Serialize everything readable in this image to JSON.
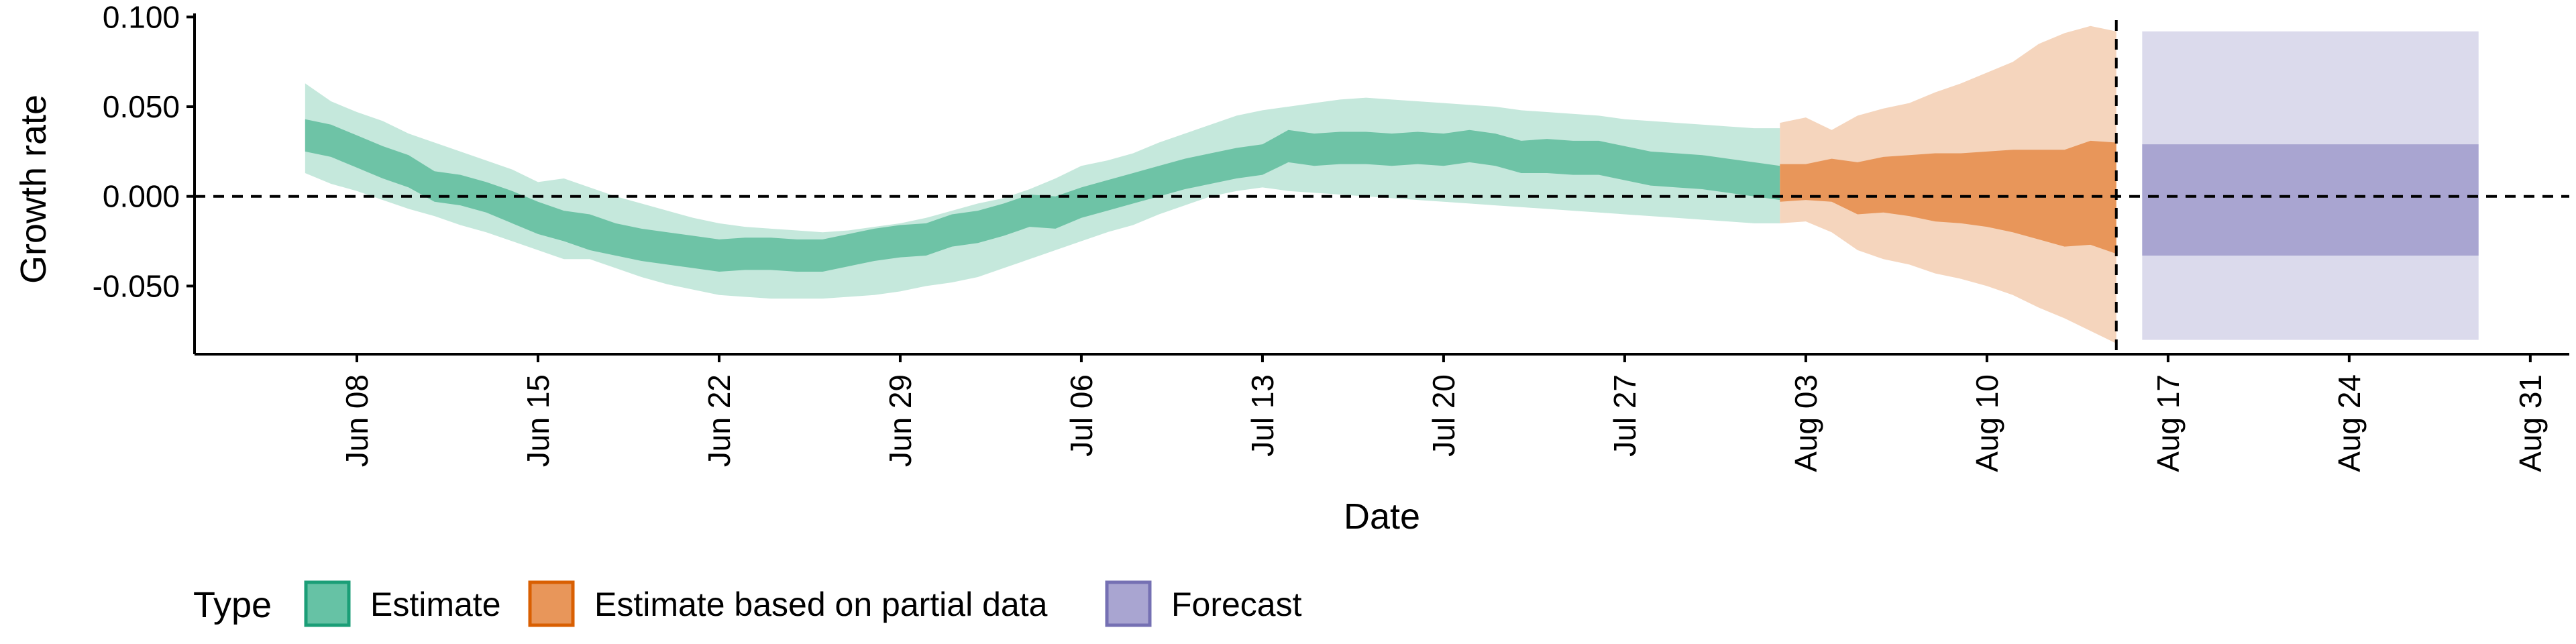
{
  "chart_data": {
    "type": "area",
    "xlabel": "Date",
    "ylabel": "Growth rate",
    "x_ticks": [
      "Jun 08",
      "Jun 15",
      "Jun 22",
      "Jun 29",
      "Jul 06",
      "Jul 13",
      "Jul 20",
      "Jul 27",
      "Aug 03",
      "Aug 10",
      "Aug 17",
      "Aug 24",
      "Aug 31"
    ],
    "y_ticks": [
      "0.100",
      "0.050",
      "0.000",
      "-0.050"
    ],
    "y_tick_values": [
      0.1,
      0.05,
      0.0,
      -0.05
    ],
    "xlim_days": [
      0,
      88
    ],
    "ylim": [
      -0.088,
      0.102
    ],
    "reference_lines": {
      "y": 0.0,
      "x_date": "Aug 15"
    },
    "legend": {
      "title": "Type",
      "position": "bottom-left",
      "entries": [
        {
          "label": "Estimate",
          "color": "#66c2a5",
          "edge": "#1b9e77"
        },
        {
          "label": "Estimate based on partial data",
          "color": "#e8965a",
          "edge": "#d95f02"
        },
        {
          "label": "Forecast",
          "color": "#a9a5d1",
          "edge": "#7570b3"
        }
      ]
    },
    "colors": {
      "estimate_outer": "#c5e8dc",
      "estimate_inner": "#6ec3a6",
      "partial_outer": "#f5d5bd",
      "partial_inner": "#e8965a",
      "forecast_outer": "#dbdaec",
      "forecast_inner": "#a9a5d1"
    },
    "series": [
      {
        "type": "Estimate",
        "x_dates": [
          "Jun 06",
          "Jun 07",
          "Jun 08",
          "Jun 09",
          "Jun 10",
          "Jun 11",
          "Jun 12",
          "Jun 13",
          "Jun 14",
          "Jun 15",
          "Jun 16",
          "Jun 17",
          "Jun 18",
          "Jun 19",
          "Jun 20",
          "Jun 21",
          "Jun 22",
          "Jun 23",
          "Jun 24",
          "Jun 25",
          "Jun 26",
          "Jun 27",
          "Jun 28",
          "Jun 29",
          "Jun 30",
          "Jul 01",
          "Jul 02",
          "Jul 03",
          "Jul 04",
          "Jul 05",
          "Jul 06",
          "Jul 07",
          "Jul 08",
          "Jul 09",
          "Jul 10",
          "Jul 11",
          "Jul 12",
          "Jul 13",
          "Jul 14",
          "Jul 15",
          "Jul 16",
          "Jul 17",
          "Jul 18",
          "Jul 19",
          "Jul 20",
          "Jul 21",
          "Jul 22",
          "Jul 23",
          "Jul 24",
          "Jul 25",
          "Jul 26",
          "Jul 27",
          "Jul 28",
          "Jul 29",
          "Jul 30",
          "Jul 31",
          "Aug 01",
          "Aug 02"
        ],
        "outer_upper": [
          0.063,
          0.053,
          0.047,
          0.042,
          0.035,
          0.03,
          0.025,
          0.02,
          0.015,
          0.008,
          0.01,
          0.005,
          0.0,
          -0.004,
          -0.008,
          -0.012,
          -0.015,
          -0.017,
          -0.018,
          -0.019,
          -0.02,
          -0.019,
          -0.017,
          -0.015,
          -0.012,
          -0.008,
          -0.004,
          -0.001,
          0.004,
          0.01,
          0.017,
          0.02,
          0.024,
          0.03,
          0.035,
          0.04,
          0.045,
          0.048,
          0.05,
          0.052,
          0.054,
          0.055,
          0.054,
          0.053,
          0.052,
          0.051,
          0.05,
          0.048,
          0.047,
          0.046,
          0.045,
          0.043,
          0.042,
          0.041,
          0.04,
          0.039,
          0.038,
          0.038
        ],
        "inner_upper": [
          0.043,
          0.04,
          0.034,
          0.028,
          0.023,
          0.014,
          0.012,
          0.008,
          0.003,
          -0.003,
          -0.008,
          -0.01,
          -0.015,
          -0.018,
          -0.02,
          -0.022,
          -0.024,
          -0.023,
          -0.023,
          -0.024,
          -0.024,
          -0.021,
          -0.018,
          -0.016,
          -0.015,
          -0.01,
          -0.008,
          -0.004,
          0.001,
          0.0,
          0.005,
          0.009,
          0.013,
          0.017,
          0.021,
          0.024,
          0.027,
          0.029,
          0.037,
          0.035,
          0.036,
          0.036,
          0.035,
          0.036,
          0.035,
          0.037,
          0.035,
          0.031,
          0.032,
          0.031,
          0.031,
          0.028,
          0.025,
          0.024,
          0.023,
          0.021,
          0.019,
          0.017
        ],
        "inner_lower": [
          0.025,
          0.022,
          0.016,
          0.01,
          0.005,
          -0.003,
          -0.005,
          -0.009,
          -0.015,
          -0.021,
          -0.025,
          -0.03,
          -0.033,
          -0.036,
          -0.038,
          -0.04,
          -0.042,
          -0.041,
          -0.041,
          -0.042,
          -0.042,
          -0.039,
          -0.036,
          -0.034,
          -0.033,
          -0.028,
          -0.026,
          -0.022,
          -0.017,
          -0.018,
          -0.012,
          -0.008,
          -0.004,
          0.0,
          0.004,
          0.007,
          0.01,
          0.012,
          0.019,
          0.017,
          0.018,
          0.018,
          0.017,
          0.018,
          0.017,
          0.019,
          0.017,
          0.013,
          0.013,
          0.012,
          0.012,
          0.009,
          0.006,
          0.005,
          0.004,
          0.002,
          0.0,
          -0.002
        ],
        "outer_lower": [
          0.013,
          0.007,
          0.003,
          -0.002,
          -0.007,
          -0.011,
          -0.016,
          -0.02,
          -0.025,
          -0.03,
          -0.035,
          -0.035,
          -0.04,
          -0.045,
          -0.049,
          -0.052,
          -0.055,
          -0.056,
          -0.057,
          -0.057,
          -0.057,
          -0.056,
          -0.055,
          -0.053,
          -0.05,
          -0.048,
          -0.045,
          -0.04,
          -0.035,
          -0.03,
          -0.025,
          -0.02,
          -0.016,
          -0.01,
          -0.005,
          0.0,
          0.003,
          0.005,
          0.003,
          0.002,
          0.001,
          0.0,
          -0.001,
          -0.002,
          -0.003,
          -0.004,
          -0.005,
          -0.006,
          -0.007,
          -0.008,
          -0.009,
          -0.01,
          -0.011,
          -0.012,
          -0.013,
          -0.014,
          -0.015,
          -0.015
        ]
      },
      {
        "type": "Estimate based on partial data",
        "x_dates": [
          "Aug 02",
          "Aug 03",
          "Aug 04",
          "Aug 05",
          "Aug 06",
          "Aug 07",
          "Aug 08",
          "Aug 09",
          "Aug 10",
          "Aug 11",
          "Aug 12",
          "Aug 13",
          "Aug 14",
          "Aug 15"
        ],
        "outer_upper": [
          0.041,
          0.044,
          0.037,
          0.045,
          0.049,
          0.052,
          0.058,
          0.063,
          0.069,
          0.075,
          0.085,
          0.091,
          0.095,
          0.092
        ],
        "inner_upper": [
          0.018,
          0.018,
          0.021,
          0.019,
          0.022,
          0.023,
          0.024,
          0.024,
          0.025,
          0.026,
          0.026,
          0.026,
          0.031,
          0.03
        ],
        "inner_lower": [
          -0.003,
          -0.002,
          -0.003,
          -0.01,
          -0.009,
          -0.011,
          -0.014,
          -0.015,
          -0.017,
          -0.02,
          -0.024,
          -0.028,
          -0.027,
          -0.032
        ],
        "outer_lower": [
          -0.015,
          -0.014,
          -0.02,
          -0.03,
          -0.035,
          -0.038,
          -0.043,
          -0.046,
          -0.05,
          -0.055,
          -0.062,
          -0.068,
          -0.075,
          -0.082
        ]
      },
      {
        "type": "Forecast",
        "x_dates": [
          "Aug 16",
          "Aug 29"
        ],
        "outer_upper": [
          0.092,
          0.092
        ],
        "inner_upper": [
          0.029,
          0.029
        ],
        "inner_lower": [
          -0.033,
          -0.033
        ],
        "outer_lower": [
          -0.08,
          -0.08
        ]
      }
    ]
  }
}
